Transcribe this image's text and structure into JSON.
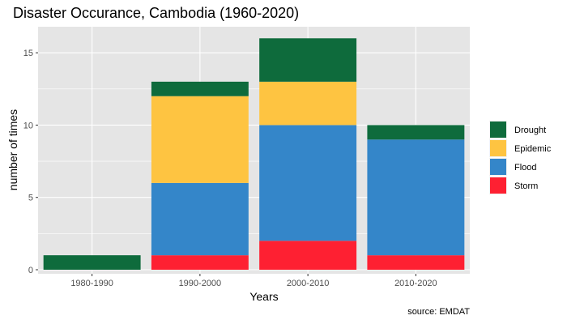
{
  "chart_data": {
    "type": "bar",
    "stacked": true,
    "title": "Disaster Occurance, Cambodia (1960-2020)",
    "xlabel": "Years",
    "ylabel": "number of times",
    "caption": "source: EMDAT",
    "categories": [
      "1980-1990",
      "1990-2000",
      "2000-2010",
      "2010-2020"
    ],
    "y_ticks": [
      0,
      5,
      10,
      15
    ],
    "ylim": [
      0,
      16.8
    ],
    "grid": true,
    "legend_position": "right",
    "stack_order": [
      "Storm",
      "Flood",
      "Epidemic",
      "Drought"
    ],
    "series": [
      {
        "name": "Drought",
        "color": "#0e6b3c",
        "values": [
          1,
          1,
          3,
          1
        ]
      },
      {
        "name": "Epidemic",
        "color": "#fec441",
        "values": [
          0,
          6,
          3,
          0
        ]
      },
      {
        "name": "Flood",
        "color": "#3486c9",
        "values": [
          0,
          5,
          8,
          8
        ]
      },
      {
        "name": "Storm",
        "color": "#fe2032",
        "values": [
          0,
          1,
          2,
          1
        ]
      }
    ],
    "panel_background": "#e5e5e5",
    "grid_color": "#ffffff"
  }
}
